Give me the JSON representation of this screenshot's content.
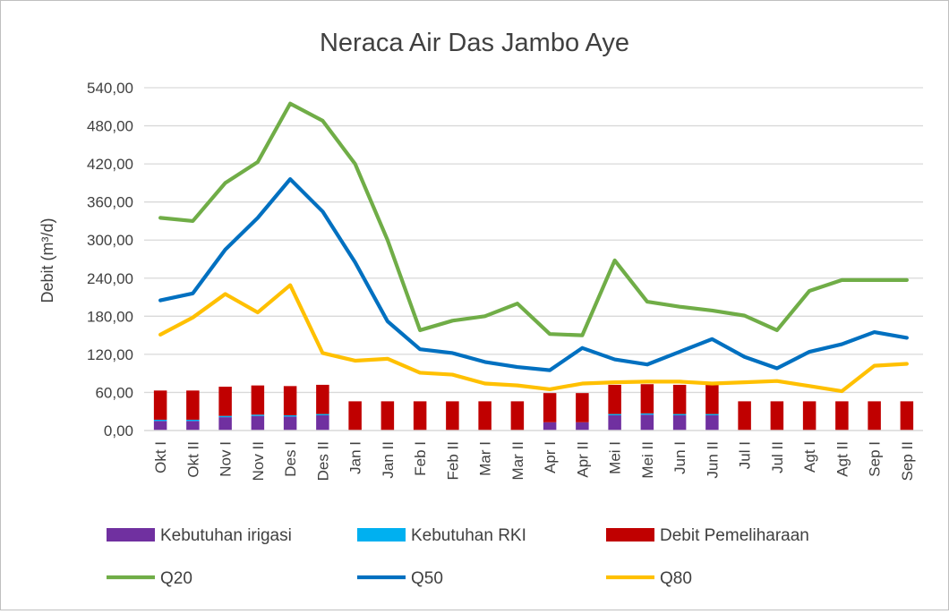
{
  "chart_data": {
    "type": "bar",
    "title": "Neraca Air Das Jambo Aye",
    "ylabel": "Debit (m³/d)",
    "xlabel": "",
    "ylim": [
      0,
      540
    ],
    "yticks": [
      "0,00",
      "60,00",
      "120,00",
      "180,00",
      "240,00",
      "300,00",
      "360,00",
      "420,00",
      "480,00",
      "540,00"
    ],
    "grid": true,
    "legend_position": "bottom",
    "categories": [
      "Okt I",
      "Okt II",
      "Nov I",
      "Nov II",
      "Des I",
      "Des II",
      "Jan I",
      "Jan II",
      "Feb I",
      "Feb II",
      "Mar I",
      "Mar II",
      "Apr I",
      "Apr II",
      "Mei I",
      "Mei II",
      "Jun I",
      "Jun II",
      "Jul I",
      "Jul II",
      "Agt I",
      "Agt II",
      "Sep I",
      "Sep II"
    ],
    "stacked_bars": [
      {
        "name": "Kebutuhan irigasi",
        "color": "#7030a0",
        "values": [
          15,
          15,
          21,
          23,
          22,
          24,
          0,
          0,
          0,
          0,
          0,
          0,
          13,
          13,
          24,
          25,
          24,
          24,
          0,
          0,
          0,
          0,
          0,
          0
        ]
      },
      {
        "name": "Kebutuhan RKI",
        "color": "#00b0f0",
        "values": [
          2,
          2,
          2,
          2,
          2,
          2,
          0,
          0,
          0,
          0,
          0,
          0,
          0,
          0,
          2,
          2,
          2,
          2,
          0,
          0,
          0,
          0,
          0,
          0
        ]
      },
      {
        "name": "Debit Pemeliharaan",
        "color": "#c00000",
        "values": [
          46,
          46,
          46,
          46,
          46,
          46,
          46,
          46,
          46,
          46,
          46,
          46,
          46,
          46,
          46,
          46,
          46,
          46,
          46,
          46,
          46,
          46,
          46,
          46
        ]
      }
    ],
    "series": [
      {
        "name": "Q20",
        "color": "#70ad47",
        "values": [
          335,
          330,
          390,
          423,
          515,
          488,
          420,
          300,
          158,
          173,
          180,
          200,
          152,
          150,
          268,
          203,
          195,
          189,
          181,
          158,
          220,
          237,
          237,
          237
        ]
      },
      {
        "name": "Q50",
        "color": "#0070c0",
        "values": [
          205,
          216,
          285,
          335,
          396,
          345,
          265,
          172,
          128,
          122,
          108,
          100,
          95,
          130,
          112,
          104,
          124,
          144,
          116,
          98,
          124,
          136,
          155,
          146
        ]
      },
      {
        "name": "Q80",
        "color": "#ffc000",
        "values": [
          151,
          178,
          215,
          186,
          229,
          122,
          110,
          113,
          91,
          88,
          74,
          71,
          65,
          74,
          76,
          77,
          77,
          74,
          76,
          78,
          70,
          62,
          102,
          105
        ]
      }
    ]
  }
}
